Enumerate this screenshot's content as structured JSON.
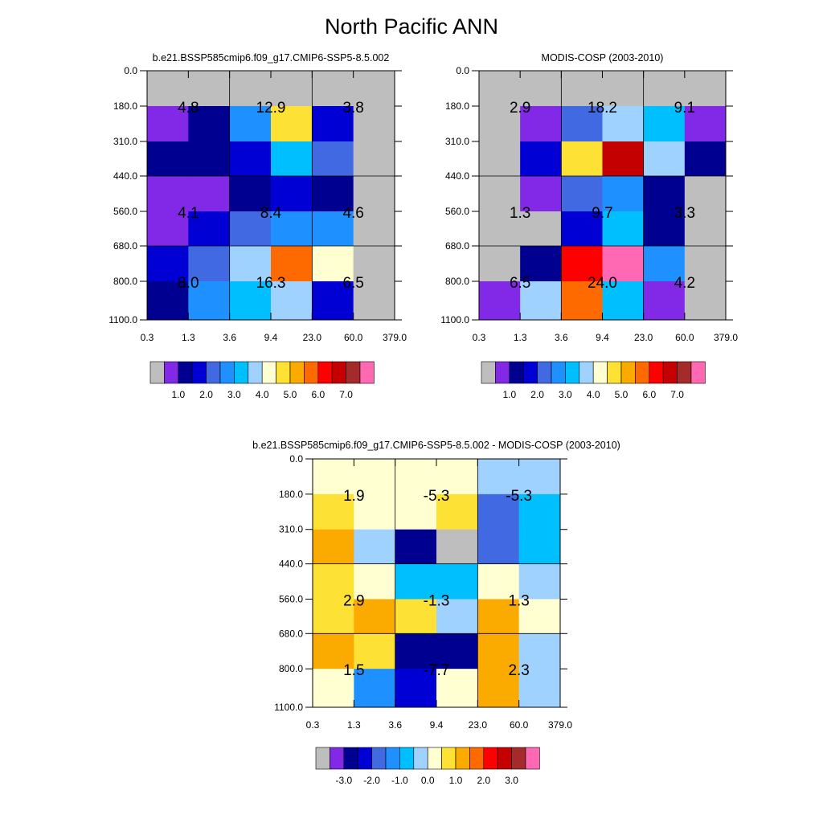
{
  "title": "North Pacific ANN",
  "color_palettes": {
    "absolute": [
      "#bebebe",
      "#8129e7",
      "#000090",
      "#0000d5",
      "#4169e1",
      "#1e90ff",
      "#00bfff",
      "#a0d2ff",
      "#ffffd1",
      "#fde134",
      "#fbaa00",
      "#ff6a00",
      "#ff0000",
      "#c40000",
      "#a52a2a",
      "#ff69b4"
    ],
    "difference": [
      "#bebebe",
      "#8129e7",
      "#000090",
      "#0000d5",
      "#4169e1",
      "#1e90ff",
      "#00bfff",
      "#a0d2ff",
      "#ffffd1",
      "#fde134",
      "#fbaa00",
      "#ff6a00",
      "#ff0000",
      "#c40000",
      "#a52a2a",
      "#ff69b4"
    ]
  },
  "chart_data": [
    {
      "type": "heatmap",
      "title": "b.e21.BSSP585cmip6.f09_g17.CMIP6-SSP5-8.5.002",
      "x_tick_labels": [
        "0.3",
        "1.3",
        "3.6",
        "9.4",
        "23.0",
        "60.0",
        "379.0"
      ],
      "y_tick_labels": [
        "0.0",
        "180.0",
        "310.0",
        "440.0",
        "560.0",
        "680.0",
        "800.0",
        "1100.0"
      ],
      "cell_colors": [
        [
          0,
          0,
          0,
          0,
          0,
          0
        ],
        [
          1,
          2,
          5,
          9,
          3,
          0
        ],
        [
          2,
          2,
          3,
          6,
          4,
          0
        ],
        [
          1,
          1,
          2,
          3,
          2,
          0
        ],
        [
          1,
          3,
          4,
          5,
          5,
          0
        ],
        [
          3,
          4,
          7,
          11,
          8,
          0
        ],
        [
          2,
          5,
          6,
          7,
          3,
          0
        ]
      ],
      "block_values": [
        [
          "4.8",
          "12.9",
          "3.8"
        ],
        [
          "4.1",
          "8.4",
          "4.6"
        ],
        [
          "8.0",
          "16.3",
          "6.5"
        ]
      ],
      "colorbar_labels": [
        "1.0",
        "2.0",
        "3.0",
        "4.0",
        "5.0",
        "6.0",
        "7.0"
      ]
    },
    {
      "type": "heatmap",
      "title": "MODIS-COSP (2003-2010)",
      "x_tick_labels": [
        "0.3",
        "1.3",
        "3.6",
        "9.4",
        "23.0",
        "60.0",
        "379.0"
      ],
      "y_tick_labels": [
        "0.0",
        "180.0",
        "310.0",
        "440.0",
        "560.0",
        "680.0",
        "800.0",
        "1100.0"
      ],
      "cell_colors": [
        [
          0,
          0,
          0,
          0,
          0,
          0
        ],
        [
          0,
          1,
          4,
          7,
          6,
          1
        ],
        [
          0,
          3,
          9,
          13,
          7,
          2
        ],
        [
          0,
          1,
          4,
          5,
          2,
          0
        ],
        [
          0,
          0,
          3,
          6,
          2,
          0
        ],
        [
          0,
          2,
          12,
          15,
          5,
          0
        ],
        [
          1,
          7,
          11,
          6,
          1,
          0
        ]
      ],
      "block_values": [
        [
          "2.9",
          "18.2",
          "9.1"
        ],
        [
          "1.3",
          "9.7",
          "3.3"
        ],
        [
          "6.5",
          "24.0",
          "4.2"
        ]
      ],
      "colorbar_labels": [
        "1.0",
        "2.0",
        "3.0",
        "4.0",
        "5.0",
        "6.0",
        "7.0"
      ]
    },
    {
      "type": "heatmap",
      "title": "b.e21.BSSP585cmip6.f09_g17.CMIP6-SSP5-8.5.002 - MODIS-COSP (2003-2010)",
      "x_tick_labels": [
        "0.3",
        "1.3",
        "3.6",
        "9.4",
        "23.0",
        "60.0",
        "379.0"
      ],
      "y_tick_labels": [
        "0.0",
        "180.0",
        "310.0",
        "440.0",
        "560.0",
        "680.0",
        "800.0",
        "1100.0"
      ],
      "cell_colors": [
        [
          8,
          8,
          8,
          8,
          7,
          7
        ],
        [
          9,
          8,
          8,
          9,
          4,
          6
        ],
        [
          10,
          7,
          2,
          0,
          4,
          6
        ],
        [
          9,
          8,
          6,
          6,
          8,
          7
        ],
        [
          9,
          10,
          9,
          7,
          10,
          8
        ],
        [
          10,
          9,
          2,
          2,
          10,
          7
        ],
        [
          8,
          5,
          3,
          8,
          10,
          7
        ]
      ],
      "block_values": [
        [
          "1.9",
          "-5.3",
          "-5.3"
        ],
        [
          "2.9",
          "-1.3",
          "1.3"
        ],
        [
          "1.5",
          "-7.7",
          "2.3"
        ]
      ],
      "colorbar_labels": [
        "-3.0",
        "-2.0",
        "-1.0",
        "0.0",
        "1.0",
        "2.0",
        "3.0"
      ]
    }
  ]
}
